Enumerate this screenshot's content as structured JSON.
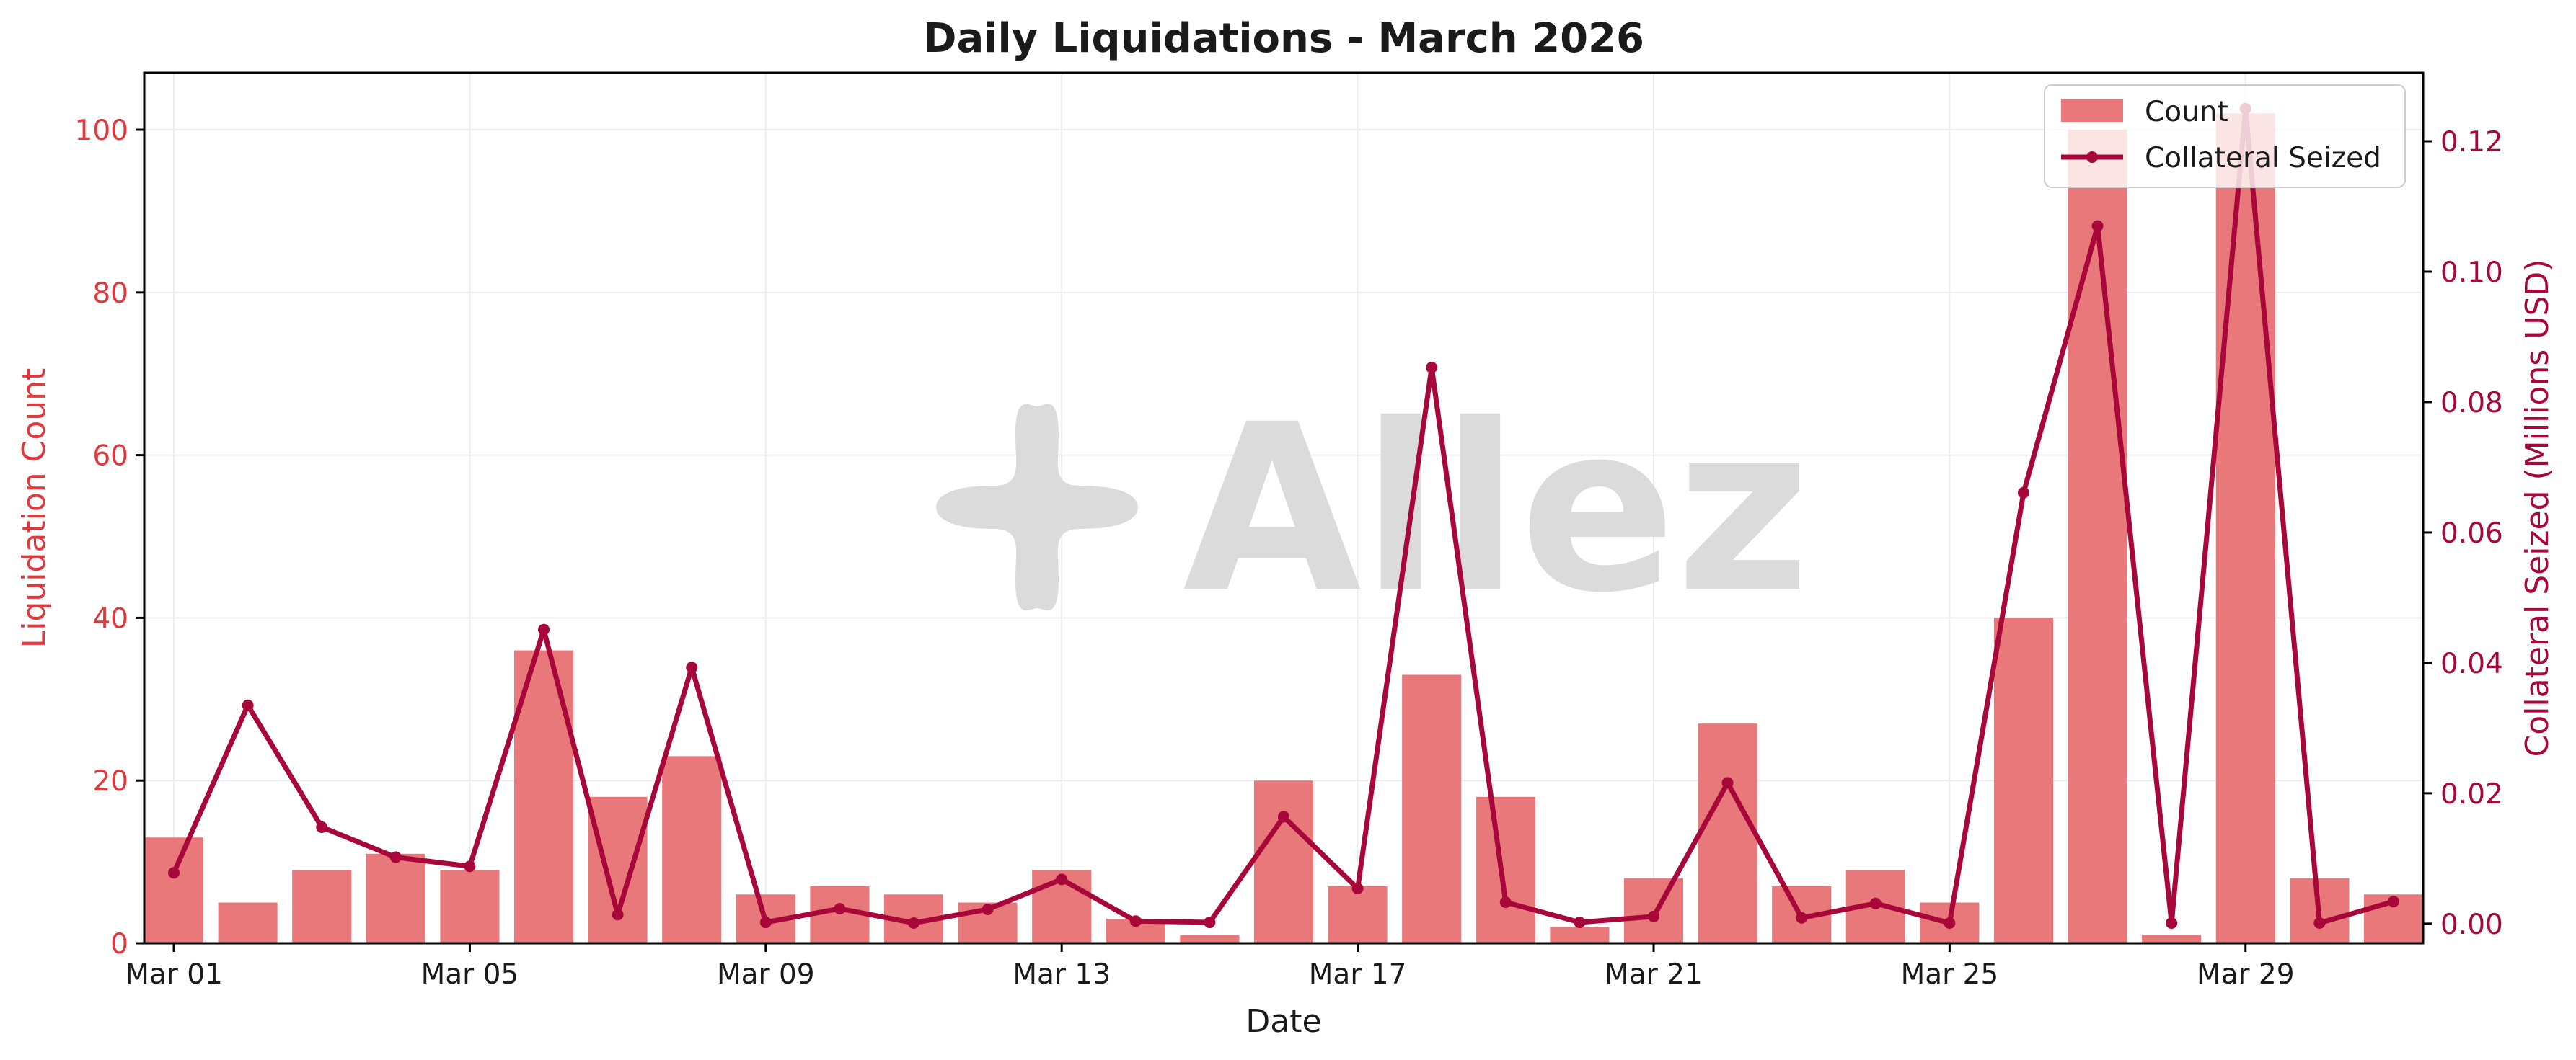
{
  "watermark": {
    "text": "Allez",
    "logo": "allez-flower-logo"
  },
  "colors": {
    "bar": "#e8787a",
    "line": "#a8073a",
    "left_axis": "#e0393d",
    "right_axis": "#a8073a",
    "grid": "#ececf4",
    "frame": "#000000"
  },
  "chart_data": {
    "type": "bar",
    "title": "Daily Liquidations - March 2026",
    "xlabel": "Date",
    "ylabel": "Liquidation Count",
    "y2label": "Collateral Seized (Millions USD)",
    "categories": [
      "2026-03-01",
      "2026-03-02",
      "2026-03-03",
      "2026-03-04",
      "2026-03-05",
      "2026-03-06",
      "2026-03-07",
      "2026-03-08",
      "2026-03-09",
      "2026-03-10",
      "2026-03-11",
      "2026-03-12",
      "2026-03-13",
      "2026-03-14",
      "2026-03-15",
      "2026-03-16",
      "2026-03-17",
      "2026-03-18",
      "2026-03-19",
      "2026-03-20",
      "2026-03-21",
      "2026-03-22",
      "2026-03-23",
      "2026-03-24",
      "2026-03-25",
      "2026-03-26",
      "2026-03-27",
      "2026-03-28",
      "2026-03-29",
      "2026-03-30",
      "2026-03-31"
    ],
    "x_tick_labels": [
      "Mar 01",
      "Mar 05",
      "Mar 09",
      "Mar 13",
      "Mar 17",
      "Mar 21",
      "Mar 25",
      "Mar 29"
    ],
    "series": [
      {
        "name": "Count",
        "type": "bar",
        "axis": "left",
        "values": [
          13,
          5,
          9,
          11,
          9,
          36,
          18,
          23,
          6,
          7,
          6,
          5,
          9,
          3,
          1,
          20,
          7,
          33,
          18,
          2,
          8,
          27,
          7,
          9,
          5,
          40,
          100,
          1,
          102,
          8,
          6
        ]
      },
      {
        "name": "Collateral Seized",
        "type": "line",
        "axis": "right",
        "values": [
          0.0078,
          0.0335,
          0.0148,
          0.0102,
          0.0088,
          0.0451,
          0.0014,
          0.0393,
          0.0002,
          0.0023,
          0.0001,
          0.0022,
          0.0068,
          0.0004,
          0.0002,
          0.0164,
          0.0054,
          0.0853,
          0.0033,
          0.0002,
          0.0011,
          0.0216,
          0.0009,
          0.0031,
          0.0001,
          0.0661,
          0.107,
          0.0001,
          0.125,
          0.0001,
          0.0034
        ]
      }
    ],
    "ylim": [
      0,
      107
    ],
    "y_ticks": [
      0,
      20,
      40,
      60,
      80,
      100
    ],
    "y2lim": [
      -0.003,
      0.1305
    ],
    "y2_ticks": [
      0.0,
      0.02,
      0.04,
      0.06,
      0.08,
      0.1,
      0.12
    ],
    "grid": true,
    "legend": {
      "position": "top-right",
      "entries": [
        "Count",
        "Collateral Seized"
      ]
    }
  }
}
